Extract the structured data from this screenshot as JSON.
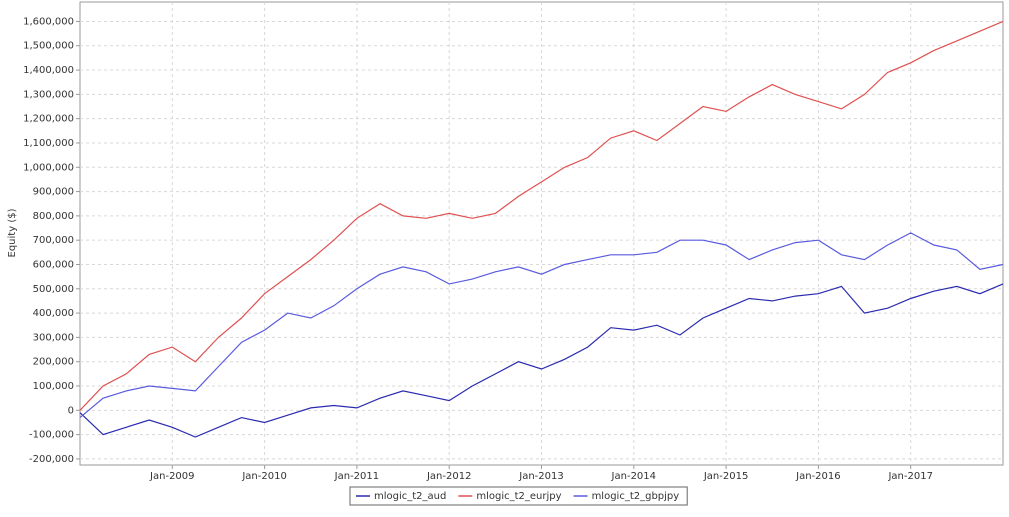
{
  "chart_data": {
    "type": "line",
    "ylabel": "Equity ($)",
    "x": [
      "2008-01",
      "2008-04",
      "2008-07",
      "2008-10",
      "2009-01",
      "2009-04",
      "2009-07",
      "2009-10",
      "2010-01",
      "2010-04",
      "2010-07",
      "2010-10",
      "2011-01",
      "2011-04",
      "2011-07",
      "2011-10",
      "2012-01",
      "2012-04",
      "2012-07",
      "2012-10",
      "2013-01",
      "2013-04",
      "2013-07",
      "2013-10",
      "2014-01",
      "2014-04",
      "2014-07",
      "2014-10",
      "2015-01",
      "2015-04",
      "2015-07",
      "2015-10",
      "2016-01",
      "2016-04",
      "2016-07",
      "2016-10",
      "2017-01",
      "2017-04",
      "2017-07",
      "2017-10",
      "2018-01"
    ],
    "series": [
      {
        "name": "mlogic_t2_aud",
        "color": "#2a2ab0",
        "values": [
          -10000,
          -100000,
          -70000,
          -40000,
          -70000,
          -110000,
          -70000,
          -30000,
          -50000,
          -20000,
          10000,
          20000,
          10000,
          50000,
          80000,
          60000,
          40000,
          100000,
          150000,
          200000,
          170000,
          210000,
          260000,
          340000,
          330000,
          350000,
          310000,
          380000,
          420000,
          460000,
          450000,
          470000,
          480000,
          510000,
          400000,
          420000,
          460000,
          490000,
          510000,
          480000,
          520000
        ]
      },
      {
        "name": "mlogic_t2_eurjpy",
        "color": "#e05050",
        "values": [
          0,
          100000,
          150000,
          230000,
          260000,
          200000,
          300000,
          380000,
          480000,
          550000,
          620000,
          700000,
          790000,
          850000,
          800000,
          790000,
          810000,
          790000,
          810000,
          880000,
          940000,
          1000000,
          1040000,
          1120000,
          1150000,
          1110000,
          1180000,
          1250000,
          1230000,
          1290000,
          1340000,
          1300000,
          1270000,
          1240000,
          1300000,
          1390000,
          1430000,
          1480000,
          1520000,
          1560000,
          1600000
        ]
      },
      {
        "name": "mlogic_t2_gbpjpy",
        "color": "#5a5ae0",
        "values": [
          -30000,
          50000,
          80000,
          100000,
          90000,
          80000,
          180000,
          280000,
          330000,
          400000,
          380000,
          430000,
          500000,
          560000,
          590000,
          570000,
          520000,
          540000,
          570000,
          590000,
          560000,
          600000,
          620000,
          640000,
          640000,
          650000,
          700000,
          700000,
          680000,
          620000,
          660000,
          690000,
          700000,
          640000,
          620000,
          680000,
          730000,
          680000,
          660000,
          580000,
          600000
        ]
      }
    ],
    "xlim": [
      "2008-01",
      "2018-01"
    ],
    "xticks": [
      {
        "value": "2009-01",
        "label": "Jan-2009"
      },
      {
        "value": "2010-01",
        "label": "Jan-2010"
      },
      {
        "value": "2011-01",
        "label": "Jan-2011"
      },
      {
        "value": "2012-01",
        "label": "Jan-2012"
      },
      {
        "value": "2013-01",
        "label": "Jan-2013"
      },
      {
        "value": "2014-01",
        "label": "Jan-2014"
      },
      {
        "value": "2015-01",
        "label": "Jan-2015"
      },
      {
        "value": "2016-01",
        "label": "Jan-2016"
      },
      {
        "value": "2017-01",
        "label": "Jan-2017"
      }
    ],
    "ylim": [
      -225000,
      1680000
    ],
    "yticks": [
      {
        "value": -200000,
        "label": "-200,000"
      },
      {
        "value": -100000,
        "label": "-100,000"
      },
      0,
      {
        "value": 100000,
        "label": "100,000"
      },
      {
        "value": 200000,
        "label": "200,000"
      },
      {
        "value": 300000,
        "label": "300,000"
      },
      {
        "value": 400000,
        "label": "400,000"
      },
      {
        "value": 500000,
        "label": "500,000"
      },
      {
        "value": 600000,
        "label": "600,000"
      },
      {
        "value": 700000,
        "label": "700,000"
      },
      {
        "value": 800000,
        "label": "800,000"
      },
      {
        "value": 900000,
        "label": "900,000"
      },
      {
        "value": 1000000,
        "label": "1,000,000"
      },
      {
        "value": 1100000,
        "label": "1,100,000"
      },
      {
        "value": 1200000,
        "label": "1,200,000"
      },
      {
        "value": 1300000,
        "label": "1,300,000"
      },
      {
        "value": 1400000,
        "label": "1,400,000"
      },
      {
        "value": 1500000,
        "label": "1,500,000"
      },
      {
        "value": 1600000,
        "label": "1,600,000"
      }
    ],
    "grid": true,
    "legend": "bottom"
  }
}
